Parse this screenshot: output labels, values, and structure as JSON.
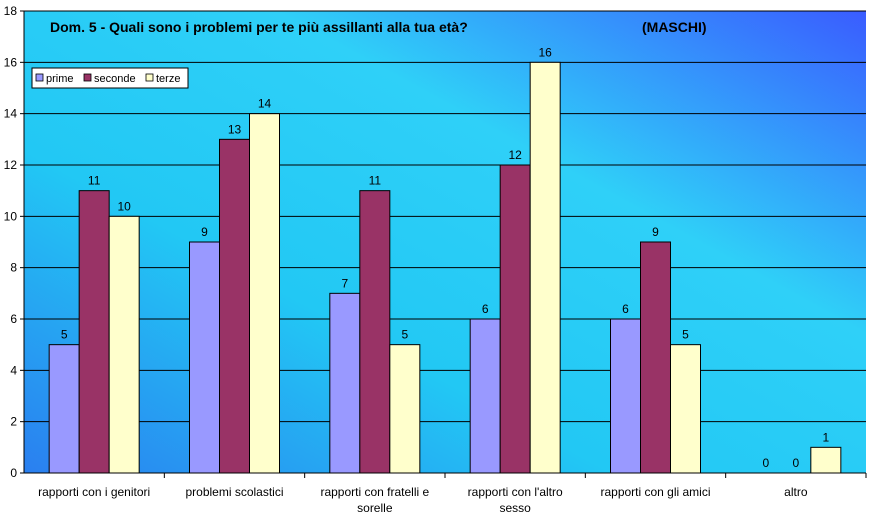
{
  "chart_data": {
    "type": "bar",
    "title": "Dom. 5 - Quali sono i problemi per te più assillanti alla tua età?",
    "subtitle": "(MASCHI)",
    "categories": [
      "rapporti con i genitori",
      "problemi scolastici",
      "rapporti con fratelli e sorelle",
      "rapporti con l'altro sesso",
      "rapporti con gli amici",
      "altro"
    ],
    "category_lines": [
      [
        "rapporti con i genitori"
      ],
      [
        "problemi scolastici"
      ],
      [
        "rapporti con fratelli e",
        "sorelle"
      ],
      [
        "rapporti con l'altro",
        "sesso"
      ],
      [
        "rapporti con gli amici"
      ],
      [
        "altro"
      ]
    ],
    "series": [
      {
        "name": "prime",
        "values": [
          5,
          9,
          7,
          6,
          6,
          0
        ],
        "color": "#9999ff"
      },
      {
        "name": "seconde",
        "values": [
          11,
          13,
          11,
          12,
          9,
          0
        ],
        "color": "#993366"
      },
      {
        "name": "terze",
        "values": [
          10,
          14,
          5,
          16,
          5,
          1
        ],
        "color": "#ffffcc"
      }
    ],
    "ylim": [
      0,
      18
    ],
    "yticks": [
      0,
      2,
      4,
      6,
      8,
      10,
      12,
      14,
      16,
      18
    ],
    "grid": true,
    "legend_position": "top-left",
    "background_gradient": [
      "#33ccff",
      "#3366ff"
    ]
  }
}
